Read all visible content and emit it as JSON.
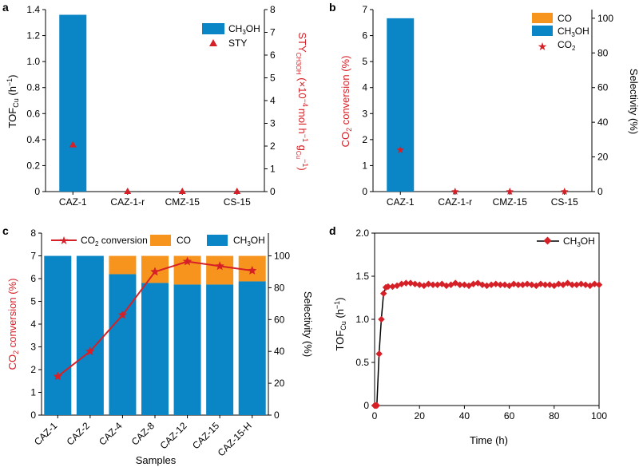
{
  "colors": {
    "ch3oh": "#0a86c6",
    "co": "#f7941d",
    "red": "#d62027",
    "axis": "#000000",
    "tof_line": "#000000"
  },
  "chart_data": [
    {
      "panel": "a",
      "type": "bar",
      "categories": [
        "CAZ-1",
        "CAZ-1-r",
        "CMZ-15",
        "CS-15"
      ],
      "series": [
        {
          "name": "CH3OH",
          "axis": "left",
          "values": [
            1.36,
            0,
            0,
            0
          ]
        },
        {
          "name": "STY",
          "axis": "right",
          "type": "scatter",
          "values": [
            2.05,
            0,
            0,
            0
          ]
        }
      ],
      "ylabel_left": "TOFCu (h−1)",
      "ylabel_right": "STYCH3OH (×10−4 mol h−1 gCu−1)",
      "ylim_left": [
        0,
        1.4
      ],
      "ylim_right": [
        0,
        8
      ],
      "yticks_left": [
        "0",
        "0.2",
        "0.4",
        "0.6",
        "0.8",
        "1.0",
        "1.2",
        "1.4"
      ],
      "yticks_right": [
        "0",
        "1",
        "2",
        "3",
        "4",
        "5",
        "6",
        "7",
        "8"
      ],
      "legend_position": "top-right"
    },
    {
      "panel": "b",
      "type": "bar",
      "categories": [
        "CAZ-1",
        "CAZ-1-r",
        "CMZ-15",
        "CS-15"
      ],
      "series": [
        {
          "name": "CO",
          "axis": "right",
          "values": [
            0,
            0,
            0,
            0
          ]
        },
        {
          "name": "CH3OH",
          "axis": "right",
          "values": [
            100,
            0,
            0,
            0
          ]
        },
        {
          "name": "CO2",
          "axis": "left",
          "type": "scatter",
          "values": [
            1.6,
            0,
            0,
            0
          ]
        }
      ],
      "ylabel_left": "CO2 conversion (%)",
      "ylabel_right": "Selectivity (%)",
      "ylim_left": [
        0,
        7
      ],
      "ylim_right": [
        0,
        105
      ],
      "yticks_left": [
        "0",
        "1",
        "2",
        "3",
        "4",
        "5",
        "6",
        "7"
      ],
      "yticks_right": [
        "0",
        "20",
        "40",
        "60",
        "80",
        "100"
      ],
      "legend_position": "top-right"
    },
    {
      "panel": "c",
      "type": "bar",
      "categories": [
        "CAZ-1",
        "CAZ-2",
        "CAZ-4",
        "CAZ-8",
        "CAZ-12",
        "CAZ-15",
        "CAZ-15-H"
      ],
      "series": [
        {
          "name": "CO2 conversion",
          "axis": "left",
          "type": "line",
          "values": [
            1.7,
            2.8,
            4.4,
            6.3,
            6.75,
            6.55,
            6.35
          ]
        },
        {
          "name": "CO",
          "axis": "right",
          "values": [
            0,
            0,
            11.5,
            17,
            18,
            18,
            16
          ]
        },
        {
          "name": "CH3OH",
          "axis": "right",
          "values": [
            100,
            100,
            88.5,
            83,
            82,
            82,
            84
          ]
        }
      ],
      "xlabel": "Samples",
      "ylabel_left": "CO2 conversion (%)",
      "ylabel_right": "Selectivity (%)",
      "ylim_left": [
        0,
        8
      ],
      "ylim_right": [
        0,
        114.3
      ],
      "yticks_left": [
        "0",
        "1",
        "2",
        "3",
        "4",
        "5",
        "6",
        "7",
        "8"
      ],
      "yticks_right": [
        "0",
        "20",
        "40",
        "60",
        "80",
        "100"
      ],
      "legend_position": "top"
    },
    {
      "panel": "d",
      "type": "line",
      "series": [
        {
          "name": "CH3OH",
          "x": [
            0,
            0.5,
            1,
            2,
            3,
            4,
            5,
            6,
            8,
            10,
            12,
            14,
            16,
            18,
            20,
            22,
            24,
            26,
            28,
            30,
            32,
            34,
            36,
            38,
            40,
            42,
            44,
            46,
            48,
            50,
            52,
            54,
            56,
            58,
            60,
            62,
            64,
            66,
            68,
            70,
            72,
            74,
            76,
            78,
            80,
            82,
            84,
            86,
            88,
            90,
            92,
            94,
            96,
            98,
            100
          ],
          "y": [
            0,
            0,
            0,
            0.6,
            1.0,
            1.3,
            1.37,
            1.38,
            1.38,
            1.39,
            1.41,
            1.42,
            1.42,
            1.41,
            1.4,
            1.39,
            1.41,
            1.4,
            1.4,
            1.41,
            1.39,
            1.4,
            1.42,
            1.4,
            1.4,
            1.39,
            1.41,
            1.42,
            1.4,
            1.39,
            1.4,
            1.41,
            1.4,
            1.4,
            1.39,
            1.41,
            1.4,
            1.4,
            1.41,
            1.4,
            1.39,
            1.41,
            1.4,
            1.4,
            1.39,
            1.41,
            1.4,
            1.42,
            1.4,
            1.4,
            1.41,
            1.4,
            1.39,
            1.41,
            1.4
          ]
        }
      ],
      "xlabel": "Time (h)",
      "ylabel": "TOFCu (h−1)",
      "xlim": [
        0,
        100
      ],
      "ylim": [
        0,
        2.0
      ],
      "xticks": [
        "0",
        "20",
        "40",
        "60",
        "80",
        "100"
      ],
      "yticks": [
        "0",
        "0.5",
        "1.0",
        "1.5",
        "2.0"
      ],
      "legend_position": "top-right"
    }
  ],
  "labels": {
    "panel_a": "a",
    "panel_b": "b",
    "panel_c": "c",
    "panel_d": "d",
    "a_ylabel_main": "TOF",
    "a_ylabel_sub": "Cu",
    "a_ylabel_tail": " (h",
    "a_ylabel_sup": "−1",
    "a_ylabel_end": ")",
    "a_ylabel_right_main": "STY",
    "a_ylabel_right_sub": "CH3OH",
    "a_ylabel_right_tail": " (×10",
    "a_ylabel_right_sup": "−4",
    "a_ylabel_right_mid": "mol h",
    "a_ylabel_right_sup2": "−1",
    "a_ylabel_right_g": " g",
    "a_ylabel_right_gsub": "Cu",
    "a_ylabel_right_sup3": "−1",
    "a_ylabel_right_end": ")",
    "leg_ch3oh_main": "CH",
    "leg_ch3oh_sub": "3",
    "leg_ch3oh_tail": "OH",
    "leg_sty": "STY",
    "b_ylabel_left_main": "CO",
    "b_ylabel_left_sub": "2",
    "b_ylabel_left_tail": " conversion (%)",
    "b_ylabel_right": "Selectivity (%)",
    "leg_co": "CO",
    "leg_co2_main": "CO",
    "leg_co2_sub": "2",
    "c_leg_conv_main": "CO",
    "c_leg_conv_sub": "2",
    "c_leg_conv_tail": " conversion",
    "c_xlabel": "Samples",
    "c_ylabel_right": "Selectivity (%)",
    "d_xlabel": "Time (h)",
    "d_ylabel_main": "TOF",
    "d_ylabel_sub": "Cu",
    "d_ylabel_tail": " (h",
    "d_ylabel_sup": "−1",
    "d_ylabel_end": ")"
  }
}
